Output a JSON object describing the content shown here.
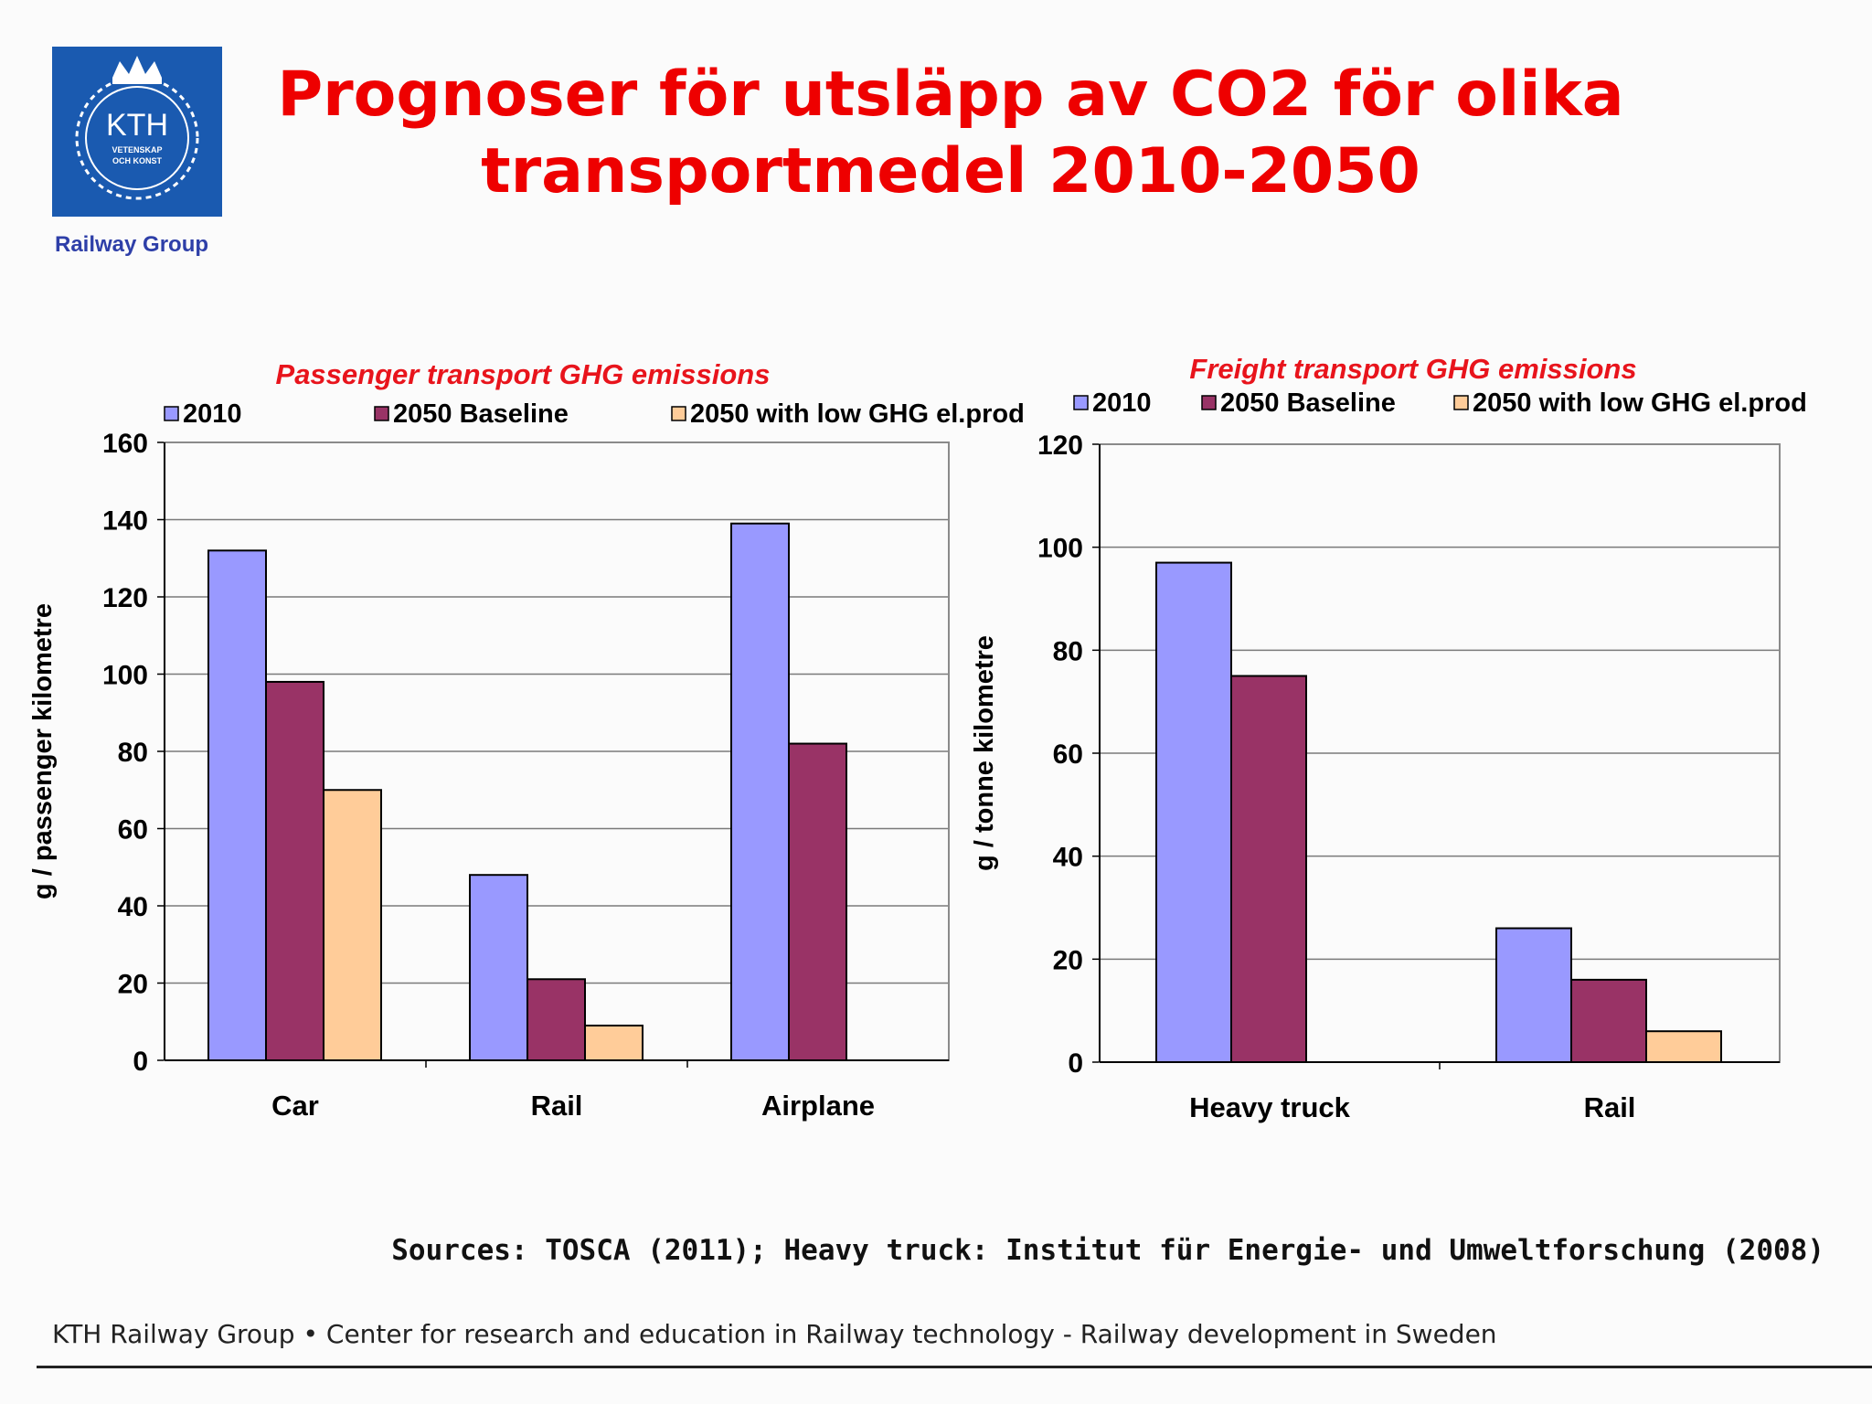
{
  "header": {
    "logo_text": "KTH",
    "logo_subtext_1": "VETENSKAP",
    "logo_subtext_2": "OCH KONST",
    "group": "Railway Group",
    "title_line1": "Prognoser för utsläpp av CO2 för olika",
    "title_line2": "transportmedel 2010-2050"
  },
  "colors": {
    "title": "#ee0000",
    "series": [
      "#9999ff",
      "#993366",
      "#ffcc99"
    ],
    "chart_title": "#e8141c"
  },
  "chart_data": [
    {
      "type": "bar",
      "title": "Passenger transport GHG emissions",
      "ylabel": "g / passenger kilometre",
      "categories": [
        "Car",
        "Rail",
        "Airplane"
      ],
      "ylim": [
        0,
        160
      ],
      "yticks": [
        0,
        20,
        40,
        60,
        80,
        100,
        120,
        140,
        160
      ],
      "grid": true,
      "legend": "top",
      "series": [
        {
          "name": "2010",
          "values": [
            132,
            48,
            139
          ]
        },
        {
          "name": "2050 Baseline",
          "values": [
            98,
            21,
            82
          ]
        },
        {
          "name": "2050 with low GHG el.prod",
          "values": [
            70,
            9,
            0
          ]
        }
      ]
    },
    {
      "type": "bar",
      "title": "Freight transport GHG emissions",
      "ylabel": "g / tonne kilometre",
      "categories": [
        "Heavy truck",
        "Rail"
      ],
      "ylim": [
        0,
        120
      ],
      "yticks": [
        0,
        20,
        40,
        60,
        80,
        100,
        120
      ],
      "grid": true,
      "legend": "top",
      "series": [
        {
          "name": "2010",
          "values": [
            97,
            26
          ]
        },
        {
          "name": "2050 Baseline",
          "values": [
            75,
            16
          ]
        },
        {
          "name": "2050 with low GHG el.prod",
          "values": [
            0,
            6
          ]
        }
      ]
    }
  ],
  "sources": "Sources: TOSCA (2011); Heavy truck: Institut für Energie- und Umweltforschung (2008)",
  "footer": "KTH Railway Group • Center for research and education in Railway technology - Railway development in Sweden"
}
